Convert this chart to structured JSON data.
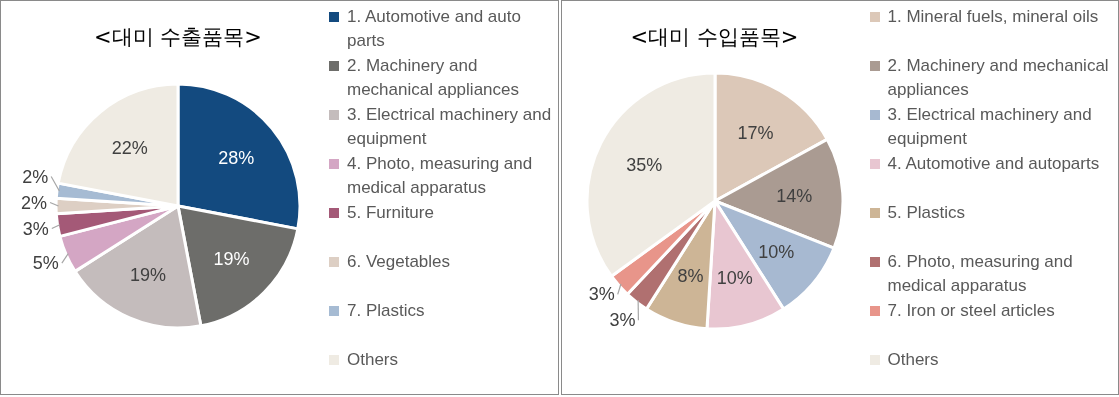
{
  "chart_data": [
    {
      "type": "pie",
      "title": "<대미 수출품목>",
      "legend": "right",
      "categories": [
        "1. Automotive and auto parts",
        "2. Machinery and mechanical appliances",
        "3. Electrical machinery and equipment",
        "4. Photo, measuring and medical apparatus",
        "5. Furniture",
        "6. Vegetables",
        "7. Plastics",
        "Others"
      ],
      "values": [
        28,
        19,
        19,
        5,
        3,
        2,
        2,
        22
      ],
      "value_labels": [
        "28%",
        "19%",
        "19%",
        "5%",
        "3%",
        "2%",
        "2%",
        "22%"
      ],
      "colors": [
        "#134a7f",
        "#6d6d6a",
        "#c4bcbc",
        "#d4a6c4",
        "#a45977",
        "#ddcfc4",
        "#a6bbd3",
        "#efebe3"
      ]
    },
    {
      "type": "pie",
      "title": "<대미 수입품목>",
      "legend": "right",
      "categories": [
        "1. Mineral fuels, mineral oils",
        "2. Machinery and mechanical appliances",
        "3. Electrical machinery and equipment",
        "4. Automotive and autoparts",
        "5. Plastics",
        "6. Photo, measuring and medical apparatus",
        "7. Iron or steel articles",
        "Others"
      ],
      "values": [
        17,
        14,
        10,
        10,
        8,
        3,
        3,
        35
      ],
      "value_labels": [
        "17%",
        "14%",
        "10%",
        "10%",
        "8%",
        "3%",
        "3%",
        "35%"
      ],
      "colors": [
        "#dcc8b8",
        "#aa9b92",
        "#a7b9d1",
        "#e8c6d1",
        "#cdb596",
        "#b07070",
        "#e8958a",
        "#efebe3"
      ]
    }
  ]
}
